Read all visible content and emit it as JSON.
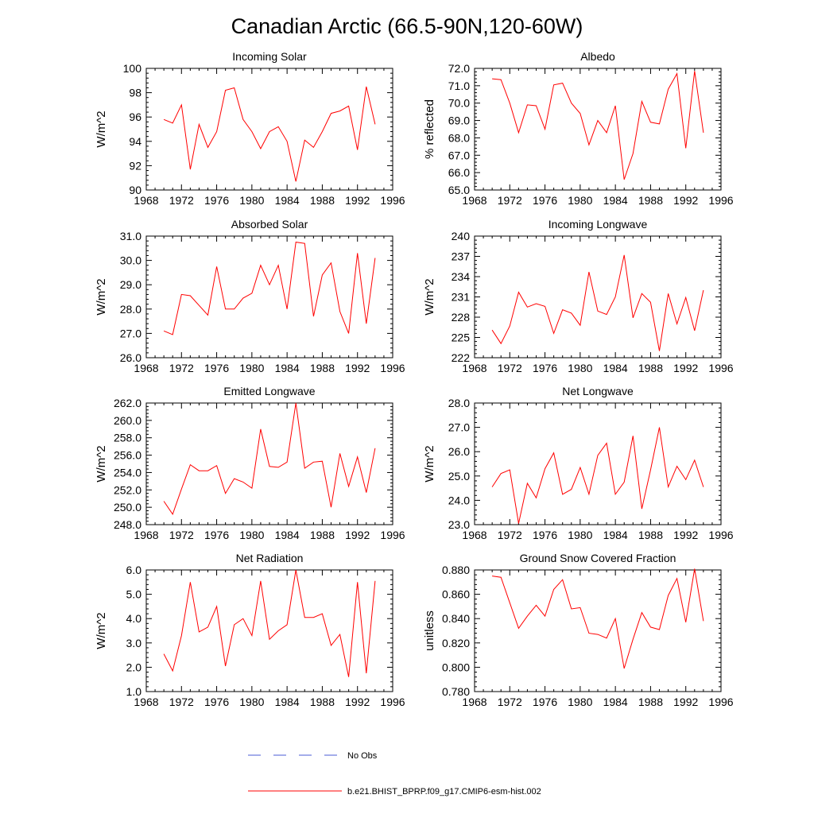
{
  "figure": {
    "title": "Canadian Arctic (66.5-90N,120-60W)",
    "line_color": "#ff0000",
    "obs_color": "#4a5bd6"
  },
  "legend": {
    "obs_label": "No Obs",
    "model_label": "b.e21.BHIST_BPRP.f09_g17.CMIP6-esm-hist.002"
  },
  "chart_data": [
    {
      "type": "line",
      "title": "Incoming Solar",
      "ylabel": "W/m^2",
      "xlim": [
        1968,
        1996
      ],
      "xticks": [
        1968,
        1972,
        1976,
        1980,
        1984,
        1988,
        1992,
        1996
      ],
      "ylim": [
        90,
        100
      ],
      "yticks": [
        90,
        92,
        94,
        96,
        98,
        100
      ],
      "ytick_labels": [
        "90",
        "92",
        "94",
        "96",
        "98",
        "100"
      ],
      "x": [
        1970,
        1971,
        1972,
        1973,
        1974,
        1975,
        1976,
        1977,
        1978,
        1979,
        1980,
        1981,
        1982,
        1983,
        1984,
        1985,
        1986,
        1987,
        1988,
        1989,
        1990,
        1991,
        1992,
        1993,
        1994
      ],
      "values": [
        95.8,
        95.5,
        97.0,
        91.7,
        95.4,
        93.5,
        94.8,
        98.2,
        98.4,
        95.8,
        94.8,
        93.4,
        94.8,
        95.2,
        94.0,
        90.7,
        94.1,
        93.5,
        94.8,
        96.3,
        96.5,
        96.9,
        93.3,
        98.5,
        95.4
      ]
    },
    {
      "type": "line",
      "title": "Albedo",
      "ylabel": "% reflected",
      "xlim": [
        1968,
        1996
      ],
      "xticks": [
        1968,
        1972,
        1976,
        1980,
        1984,
        1988,
        1992,
        1996
      ],
      "ylim": [
        65,
        72
      ],
      "yticks": [
        65,
        66,
        67,
        68,
        69,
        70,
        71,
        72
      ],
      "ytick_labels": [
        "65.0",
        "66.0",
        "67.0",
        "68.0",
        "69.0",
        "70.0",
        "71.0",
        "72.0"
      ],
      "x": [
        1970,
        1971,
        1972,
        1973,
        1974,
        1975,
        1976,
        1977,
        1978,
        1979,
        1980,
        1981,
        1982,
        1983,
        1984,
        1985,
        1986,
        1987,
        1988,
        1989,
        1990,
        1991,
        1992,
        1993,
        1994
      ],
      "values": [
        71.4,
        71.35,
        70.0,
        68.3,
        69.9,
        69.85,
        68.5,
        71.05,
        71.15,
        70.0,
        69.4,
        67.6,
        69.0,
        68.3,
        69.85,
        65.6,
        67.1,
        70.1,
        68.9,
        68.8,
        70.8,
        71.7,
        67.4,
        71.85,
        68.3
      ]
    },
    {
      "type": "line",
      "title": "Absorbed Solar",
      "ylabel": "W/m^2",
      "xlim": [
        1968,
        1996
      ],
      "xticks": [
        1968,
        1972,
        1976,
        1980,
        1984,
        1988,
        1992,
        1996
      ],
      "ylim": [
        26,
        31
      ],
      "yticks": [
        26,
        27,
        28,
        29,
        30,
        31
      ],
      "ytick_labels": [
        "26.0",
        "27.0",
        "28.0",
        "29.0",
        "30.0",
        "31.0"
      ],
      "x": [
        1970,
        1971,
        1972,
        1973,
        1974,
        1975,
        1976,
        1977,
        1978,
        1979,
        1980,
        1981,
        1982,
        1983,
        1984,
        1985,
        1986,
        1987,
        1988,
        1989,
        1990,
        1991,
        1992,
        1993,
        1994
      ],
      "values": [
        27.1,
        26.95,
        28.6,
        28.55,
        28.15,
        27.75,
        29.75,
        28.0,
        28.0,
        28.45,
        28.65,
        29.8,
        29.0,
        29.8,
        28.0,
        30.75,
        30.7,
        27.7,
        29.4,
        29.9,
        27.9,
        27.0,
        30.3,
        27.4,
        30.1
      ]
    },
    {
      "type": "line",
      "title": "Incoming Longwave",
      "ylabel": "W/m^2",
      "xlim": [
        1968,
        1996
      ],
      "xticks": [
        1968,
        1972,
        1976,
        1980,
        1984,
        1988,
        1992,
        1996
      ],
      "ylim": [
        222,
        240
      ],
      "yticks": [
        222,
        225,
        228,
        231,
        234,
        237,
        240
      ],
      "ytick_labels": [
        "222",
        "225",
        "228",
        "231",
        "234",
        "237",
        "240"
      ],
      "x": [
        1970,
        1971,
        1972,
        1973,
        1974,
        1975,
        1976,
        1977,
        1978,
        1979,
        1980,
        1981,
        1982,
        1983,
        1984,
        1985,
        1986,
        1987,
        1988,
        1989,
        1990,
        1991,
        1992,
        1993,
        1994
      ],
      "values": [
        226.1,
        224.1,
        226.7,
        231.7,
        229.5,
        230.0,
        229.6,
        225.6,
        229.1,
        228.6,
        226.8,
        234.7,
        228.9,
        228.4,
        231.0,
        237.2,
        227.9,
        231.5,
        230.2,
        223.0,
        231.5,
        227.0,
        230.9,
        226.0,
        232.0
      ]
    },
    {
      "type": "line",
      "title": "Emitted Longwave",
      "ylabel": "W/m^2",
      "xlim": [
        1968,
        1996
      ],
      "xticks": [
        1968,
        1972,
        1976,
        1980,
        1984,
        1988,
        1992,
        1996
      ],
      "ylim": [
        248,
        262
      ],
      "yticks": [
        248,
        250,
        252,
        254,
        256,
        258,
        260,
        262
      ],
      "ytick_labels": [
        "248.0",
        "250.0",
        "252.0",
        "254.0",
        "256.0",
        "258.0",
        "260.0",
        "262.0"
      ],
      "x": [
        1970,
        1971,
        1972,
        1973,
        1974,
        1975,
        1976,
        1977,
        1978,
        1979,
        1980,
        1981,
        1982,
        1983,
        1984,
        1985,
        1986,
        1987,
        1988,
        1989,
        1990,
        1991,
        1992,
        1993,
        1994
      ],
      "values": [
        250.7,
        249.2,
        252.1,
        254.9,
        254.2,
        254.2,
        254.8,
        251.6,
        253.3,
        252.9,
        252.2,
        259.0,
        254.7,
        254.6,
        255.2,
        262.0,
        254.5,
        255.2,
        255.3,
        250.0,
        256.2,
        252.4,
        255.8,
        251.7,
        256.8
      ]
    },
    {
      "type": "line",
      "title": "Net Longwave",
      "ylabel": "W/m^2",
      "xlim": [
        1968,
        1996
      ],
      "xticks": [
        1968,
        1972,
        1976,
        1980,
        1984,
        1988,
        1992,
        1996
      ],
      "ylim": [
        23,
        28
      ],
      "yticks": [
        23,
        24,
        25,
        26,
        27,
        28
      ],
      "ytick_labels": [
        "23.0",
        "24.0",
        "25.0",
        "26.0",
        "27.0",
        "28.0"
      ],
      "x": [
        1970,
        1971,
        1972,
        1973,
        1974,
        1975,
        1976,
        1977,
        1978,
        1979,
        1980,
        1981,
        1982,
        1983,
        1984,
        1985,
        1986,
        1987,
        1988,
        1989,
        1990,
        1991,
        1992,
        1993,
        1994
      ],
      "values": [
        24.55,
        25.1,
        25.25,
        23.05,
        24.7,
        24.1,
        25.3,
        25.95,
        24.25,
        24.45,
        25.35,
        24.25,
        25.85,
        26.35,
        24.25,
        24.75,
        26.65,
        23.65,
        25.25,
        27.0,
        24.55,
        25.4,
        24.85,
        25.65,
        24.55
      ]
    },
    {
      "type": "line",
      "title": "Net Radiation",
      "ylabel": "W/m^2",
      "xlim": [
        1968,
        1996
      ],
      "xticks": [
        1968,
        1972,
        1976,
        1980,
        1984,
        1988,
        1992,
        1996
      ],
      "ylim": [
        1,
        6
      ],
      "yticks": [
        1,
        2,
        3,
        4,
        5,
        6
      ],
      "ytick_labels": [
        "1.0",
        "2.0",
        "3.0",
        "4.0",
        "5.0",
        "6.0"
      ],
      "x": [
        1970,
        1971,
        1972,
        1973,
        1974,
        1975,
        1976,
        1977,
        1978,
        1979,
        1980,
        1981,
        1982,
        1983,
        1984,
        1985,
        1986,
        1987,
        1988,
        1989,
        1990,
        1991,
        1992,
        1993,
        1994
      ],
      "values": [
        2.55,
        1.85,
        3.3,
        5.5,
        3.45,
        3.65,
        4.5,
        2.05,
        3.75,
        4.0,
        3.3,
        5.55,
        3.15,
        3.5,
        3.75,
        6.0,
        4.05,
        4.05,
        4.2,
        2.9,
        3.35,
        1.6,
        5.5,
        1.75,
        5.55
      ]
    },
    {
      "type": "line",
      "title": "Ground Snow Covered Fraction",
      "ylabel": "unitless",
      "xlim": [
        1968,
        1996
      ],
      "xticks": [
        1968,
        1972,
        1976,
        1980,
        1984,
        1988,
        1992,
        1996
      ],
      "ylim": [
        0.78,
        0.88
      ],
      "yticks": [
        0.78,
        0.8,
        0.82,
        0.84,
        0.86,
        0.88
      ],
      "ytick_labels": [
        "0.780",
        "0.800",
        "0.820",
        "0.840",
        "0.860",
        "0.880"
      ],
      "x": [
        1970,
        1971,
        1972,
        1973,
        1974,
        1975,
        1976,
        1977,
        1978,
        1979,
        1980,
        1981,
        1982,
        1983,
        1984,
        1985,
        1986,
        1987,
        1988,
        1989,
        1990,
        1991,
        1992,
        1993,
        1994
      ],
      "values": [
        0.875,
        0.874,
        0.853,
        0.832,
        0.842,
        0.851,
        0.842,
        0.864,
        0.872,
        0.848,
        0.849,
        0.828,
        0.827,
        0.824,
        0.84,
        0.799,
        0.823,
        0.845,
        0.833,
        0.831,
        0.859,
        0.873,
        0.837,
        0.881,
        0.838
      ]
    }
  ]
}
